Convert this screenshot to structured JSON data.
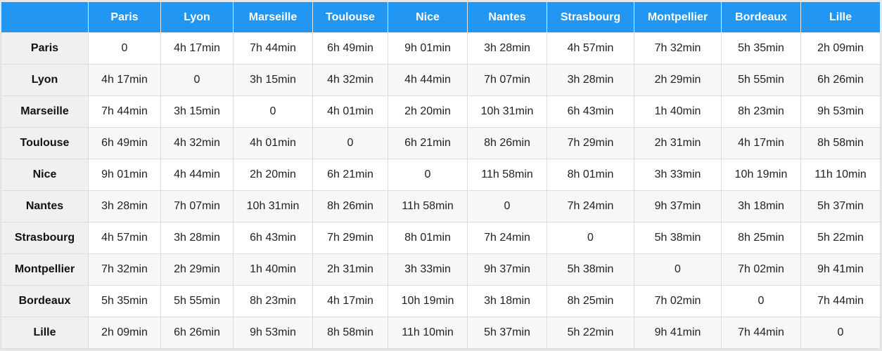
{
  "table": {
    "columns": [
      "Paris",
      "Lyon",
      "Marseille",
      "Toulouse",
      "Nice",
      "Nantes",
      "Strasbourg",
      "Montpellier",
      "Bordeaux",
      "Lille"
    ],
    "rows": [
      {
        "city": "Paris",
        "values": [
          "0",
          "4h 17min",
          "7h 44min",
          "6h 49min",
          "9h 01min",
          "3h 28min",
          "4h 57min",
          "7h 32min",
          "5h 35min",
          "2h 09min"
        ]
      },
      {
        "city": "Lyon",
        "values": [
          "4h 17min",
          "0",
          "3h 15min",
          "4h 32min",
          "4h 44min",
          "7h 07min",
          "3h 28min",
          "2h 29min",
          "5h 55min",
          "6h 26min"
        ]
      },
      {
        "city": "Marseille",
        "values": [
          "7h 44min",
          "3h 15min",
          "0",
          "4h 01min",
          "2h 20min",
          "10h 31min",
          "6h 43min",
          "1h 40min",
          "8h 23min",
          "9h 53min"
        ]
      },
      {
        "city": "Toulouse",
        "values": [
          "6h 49min",
          "4h 32min",
          "4h 01min",
          "0",
          "6h 21min",
          "8h 26min",
          "7h 29min",
          "2h 31min",
          "4h 17min",
          "8h 58min"
        ]
      },
      {
        "city": "Nice",
        "values": [
          "9h 01min",
          "4h 44min",
          "2h 20min",
          "6h 21min",
          "0",
          "11h 58min",
          "8h 01min",
          "3h 33min",
          "10h 19min",
          "11h 10min"
        ]
      },
      {
        "city": "Nantes",
        "values": [
          "3h 28min",
          "7h 07min",
          "10h 31min",
          "8h 26min",
          "11h 58min",
          "0",
          "7h 24min",
          "9h 37min",
          "3h 18min",
          "5h 37min"
        ]
      },
      {
        "city": "Strasbourg",
        "values": [
          "4h 57min",
          "3h 28min",
          "6h 43min",
          "7h 29min",
          "8h 01min",
          "7h 24min",
          "0",
          "5h 38min",
          "8h 25min",
          "5h 22min"
        ]
      },
      {
        "city": "Montpellier",
        "values": [
          "7h 32min",
          "2h 29min",
          "1h 40min",
          "2h 31min",
          "3h 33min",
          "9h 37min",
          "5h 38min",
          "0",
          "7h 02min",
          "9h 41min"
        ]
      },
      {
        "city": "Bordeaux",
        "values": [
          "5h 35min",
          "5h 55min",
          "8h 23min",
          "4h 17min",
          "10h 19min",
          "3h 18min",
          "8h 25min",
          "7h 02min",
          "0",
          "7h 44min"
        ]
      },
      {
        "city": "Lille",
        "values": [
          "2h 09min",
          "6h 26min",
          "9h 53min",
          "8h 58min",
          "11h 10min",
          "5h 37min",
          "5h 22min",
          "9h 41min",
          "7h 44min",
          "0"
        ]
      }
    ]
  },
  "colors": {
    "header_bg": "#2196f3",
    "header_text": "#ffffff",
    "row_header_bg": "#f0f0f0",
    "grid_line": "#dcdcdc"
  }
}
